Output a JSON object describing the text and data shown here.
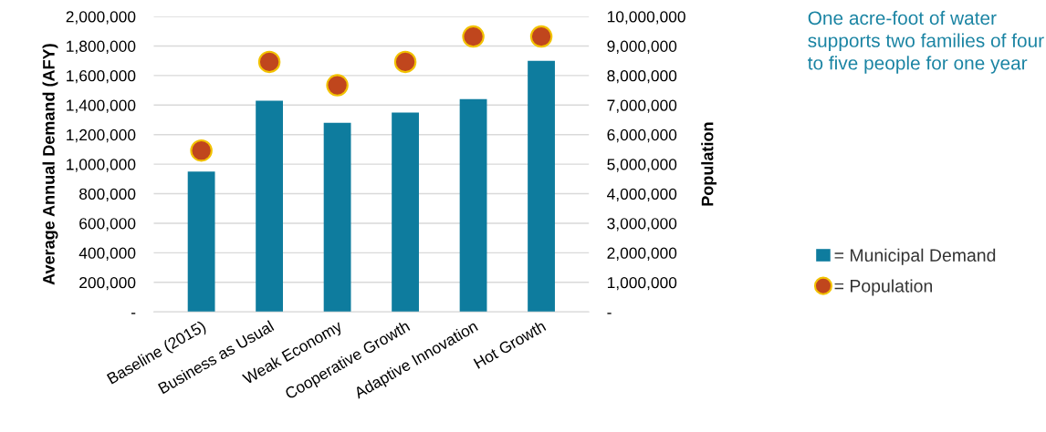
{
  "chart_data": {
    "type": "bar",
    "ylabel": "Average Annual Demand (AFY)",
    "y2label": "Population",
    "categories": [
      "Baseline (2015)",
      "Business as Usual",
      "Weak Economy",
      "Cooperative Growth",
      "Adaptive Innovation",
      "Hot Growth"
    ],
    "series": [
      {
        "name": "= Municipal Demand",
        "color": "#0e7c9e",
        "values": [
          950000,
          1430000,
          1280000,
          1350000,
          1440000,
          1700000
        ]
      },
      {
        "name": "= Population",
        "type": "scatter",
        "axis": "y2",
        "color": "#c0461d",
        "marker": "circle",
        "values": [
          5460000,
          8460000,
          7670000,
          8460000,
          9320000,
          9320000
        ]
      }
    ],
    "ylim": [
      0,
      2000000
    ],
    "yticks": [
      {
        "value": 0,
        "label": "-"
      },
      {
        "value": 200000,
        "label": "200,000"
      },
      {
        "value": 400000,
        "label": "400,000"
      },
      {
        "value": 600000,
        "label": "600,000"
      },
      {
        "value": 800000,
        "label": "800,000"
      },
      {
        "value": 1000000,
        "label": "1,000,000"
      },
      {
        "value": 1200000,
        "label": "1,200,000"
      },
      {
        "value": 1400000,
        "label": "1,400,000"
      },
      {
        "value": 1600000,
        "label": "1,600,000"
      },
      {
        "value": 1800000,
        "label": "1,800,000"
      },
      {
        "value": 2000000,
        "label": "2,000,000"
      }
    ],
    "y2lim": [
      0,
      10000000
    ],
    "y2ticks": [
      {
        "value": 0,
        "label": "-"
      },
      {
        "value": 1000000,
        "label": "1,000,000"
      },
      {
        "value": 2000000,
        "label": "2,000,000"
      },
      {
        "value": 3000000,
        "label": "3,000,000"
      },
      {
        "value": 4000000,
        "label": "4,000,000"
      },
      {
        "value": 5000000,
        "label": "5,000,000"
      },
      {
        "value": 6000000,
        "label": "6,000,000"
      },
      {
        "value": 7000000,
        "label": "7,000,000"
      },
      {
        "value": 8000000,
        "label": "8,000,000"
      },
      {
        "value": 9000000,
        "label": "9,000,000"
      },
      {
        "value": 10000000,
        "label": "10,000,000"
      }
    ],
    "grid": "y",
    "legend": "right",
    "annotations": [
      "One acre-foot of water supports two families of four to five people for one year"
    ]
  }
}
